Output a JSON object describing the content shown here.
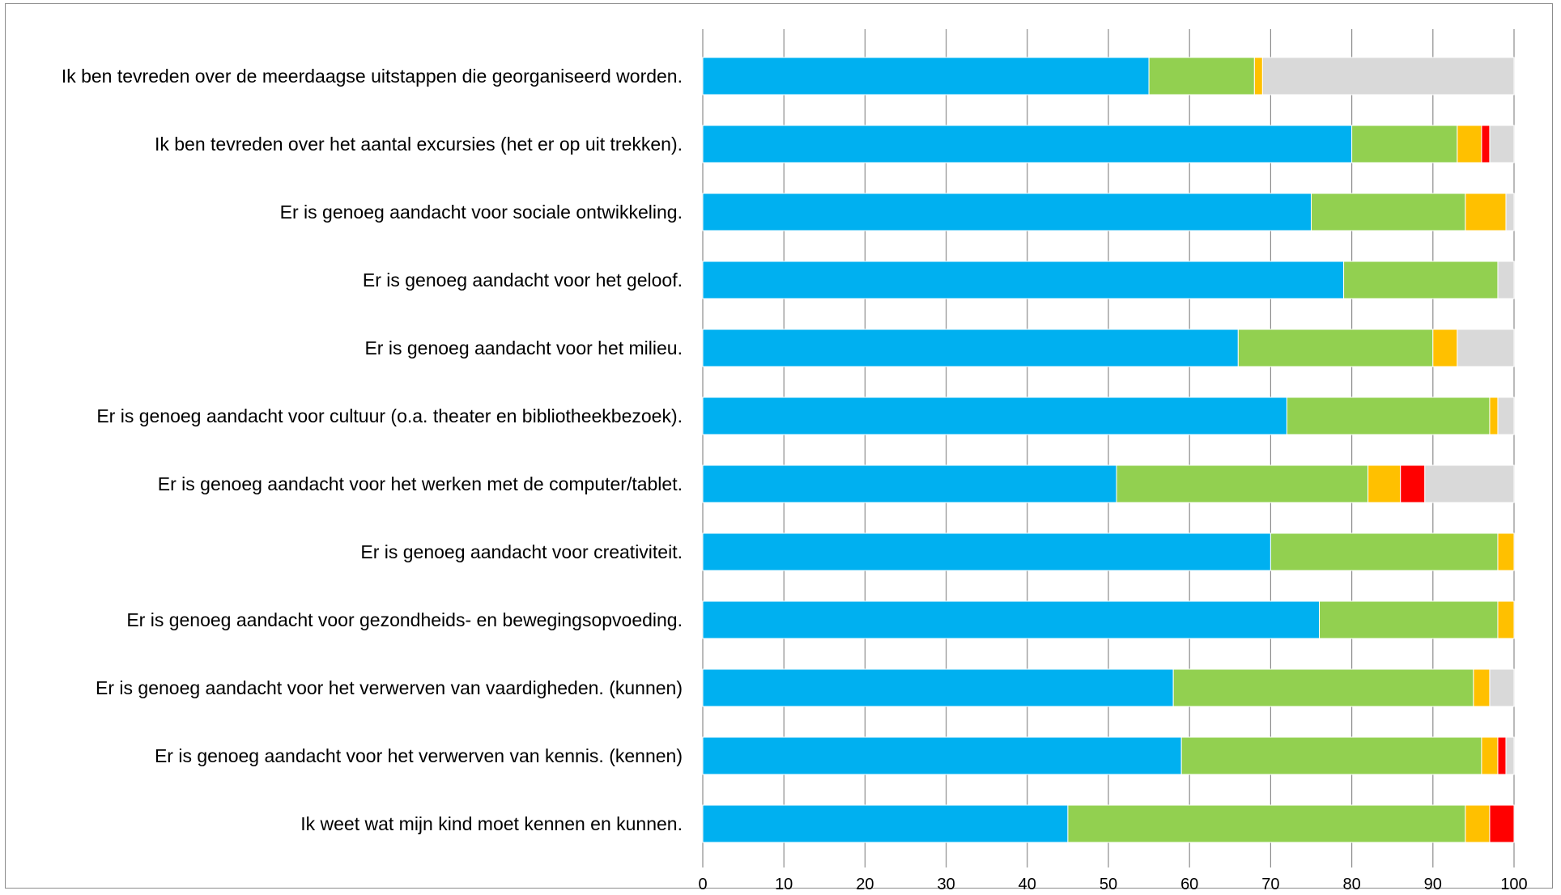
{
  "chart_data": {
    "type": "bar",
    "orientation": "horizontal",
    "stacked": true,
    "title": "",
    "xlabel": "",
    "ylabel": "",
    "xlim": [
      0,
      100
    ],
    "xticks": [
      "0",
      "10",
      "20",
      "30",
      "40",
      "50",
      "60",
      "70",
      "80",
      "90",
      "100"
    ],
    "grid": true,
    "legend": "none",
    "categories": [
      "Ik ben tevreden over de meerdaagse uitstappen die georganiseerd worden.",
      "Ik ben tevreden over het aantal excursies (het er op uit trekken).",
      "Er is genoeg aandacht voor sociale ontwikkeling.",
      "Er is genoeg aandacht voor het geloof.",
      "Er is genoeg aandacht voor het milieu.",
      "Er is genoeg aandacht voor cultuur (o.a. theater en bibliotheekbezoek).",
      "Er is genoeg aandacht voor het werken met de computer/tablet.",
      "Er is genoeg aandacht voor creativiteit.",
      "Er is genoeg aandacht voor gezondheids- en bewegingsopvoeding.",
      "Er is genoeg aandacht voor het verwerven van vaardigheden. (kunnen)",
      "Er is genoeg aandacht voor het verwerven van kennis. (kennen)",
      "Ik weet wat mijn kind moet kennen en kunnen."
    ],
    "series": [
      {
        "color": "#00b0f0",
        "values": [
          55,
          80,
          75,
          79,
          66,
          72,
          51,
          70,
          76,
          58,
          59,
          45
        ]
      },
      {
        "color": "#92d050",
        "values": [
          13,
          13,
          19,
          19,
          24,
          25,
          31,
          28,
          22,
          37,
          37,
          49
        ]
      },
      {
        "color": "#ffc000",
        "values": [
          1,
          3,
          5,
          0,
          3,
          1,
          4,
          2,
          2,
          2,
          2,
          3
        ]
      },
      {
        "color": "#ff0000",
        "values": [
          0,
          1,
          0,
          0,
          0,
          0,
          3,
          0,
          0,
          0,
          1,
          3
        ]
      },
      {
        "color": "#d9d9d9",
        "values": [
          31,
          3,
          1,
          2,
          7,
          2,
          11,
          0,
          0,
          3,
          1,
          0
        ]
      }
    ]
  }
}
